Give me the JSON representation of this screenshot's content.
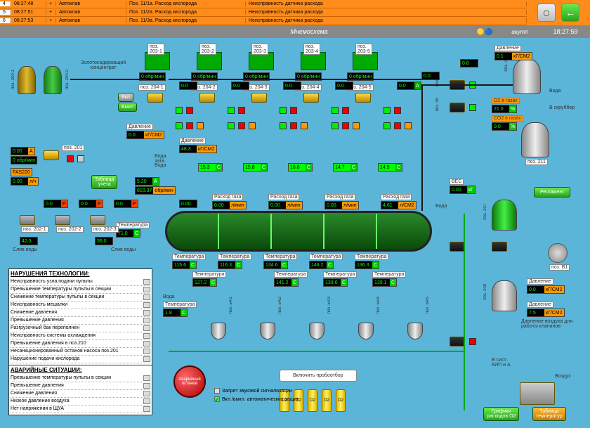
{
  "alarms": {
    "rows": [
      {
        "id": "4",
        "time": "08:27:48",
        "plus": "+",
        "src": "Автоклав",
        "pos": "Поз. 11/1а. Расход кислорода",
        "desc": "Неисправность датчика расхода"
      },
      {
        "id": "5",
        "time": "08:27:51",
        "plus": "+",
        "src": "Автоклав",
        "pos": "Поз. 11/2а. Расход кислорода",
        "desc": "Неисправность датчика расхода"
      },
      {
        "id": "6",
        "time": "08:27:53",
        "plus": "+",
        "src": "Автоклав",
        "pos": "Поз. 11/3а. Расход кислорода",
        "desc": "Неисправность датчика расхода"
      }
    ]
  },
  "title": {
    "center": "Мнемосхема",
    "user": "акутп",
    "time": "18:27:59"
  },
  "labels": {
    "concentrate": "Золотосодержащий\nконцентрат",
    "pos201": "поз. 201",
    "table_link": "Таблица\nучета",
    "vkl": "Вкл",
    "vykl": "Выкл",
    "pressure": "Давление",
    "temperature": "Температура",
    "water": "Вода",
    "water_inlet": "Вода\nзатв.",
    "water_drain": "Слив воды",
    "gas_flow": "Расход газа",
    "pos203_1": "поз.\n203-1",
    "pos203_2": "поз.\n203-2",
    "pos203_3": "поз.\n203-3",
    "pos203_4": "поз.\n203-4",
    "pos203_5": "поз.\n203-5",
    "pos204_1": "поз. 204-1",
    "pos204_2": "поз. 204-2",
    "pos204_3": "поз. 204-3",
    "pos204_4": "поз. 204-4",
    "pos204_5": "поз. 204-5",
    "pos202_1": "поз. 202-1",
    "pos202_2": "поз. 202-2",
    "pos202_3": "поз. 202-3",
    "reglament": "Регламент",
    "scrubber": "В скруббер",
    "pos210": "поз. 210",
    "pos211": "поз. 211",
    "pos207": "поз. 207",
    "pos208": "поз. 208",
    "pos209": "поз. 209",
    "posB1": "поз. В1",
    "weight": "ВЕС",
    "air_note": "Давление воздуха для\nработы клапанов",
    "to_kip": "В сист.\nКИП и А",
    "air": "Воздух",
    "co2": "СО2 в газах",
    "o2_gas": "О2 в газах",
    "sampling": "Включить пробоотбор",
    "stop": "Аварийный\nостанов",
    "mute": "Запрет звуковой сигнализации",
    "auto": "Вкл./выкл. автоматических защит",
    "chart_link": "Графики\nрасходов О2",
    "temp_table": "Таблица\nтемператур"
  },
  "values": {
    "obr_min": "0  обр/мин",
    "p_00": "0.0",
    "pct": "%",
    "d_00": "0.0",
    "kgcm2": "кГ/СМ2",
    "d_483": "48.3",
    "d_153": "15.3",
    "d_158": "15.8",
    "d_168": "16.8",
    "d_147": "14.7",
    "d_149": "14.9",
    "a_520": "5.20",
    "a_unit": "A",
    "obr_810": "810.37",
    "obr_unit": "обр/мин",
    "rg_000": "0.00",
    "rg_lmin": "л/мин",
    "rg_461": "4.61",
    "rg_lcm2": "л/СМ2",
    "t_1156": "115.6",
    "t_1163": "116.3",
    "t_1346": "134.6",
    "t_1482": "148.2",
    "t_1363": "136.3",
    "t_1272": "127.2",
    "t_1412": "141.2",
    "t_1396": "139.6",
    "t_1391": "139.1",
    "t_710": "71.0",
    "t_423": "42.3",
    "t_360": "36.0",
    "t_18": "1.8",
    "o2_210": "21.0",
    "d_01": "0.1",
    "w_000": "0.00",
    "kg": "кГ",
    "d_75": "7.5",
    "p_000": "0.0",
    "p_unit": "Р",
    "lch": "л/ч",
    "fas": "FAS220"
  },
  "violations": {
    "title": "НАРУШЕНИЯ ТЕХНОЛОГИИ:",
    "items": [
      "Неисправность узла подачи пульпы",
      "Превышение температуры пульпы в секции",
      "Снижение температуры пульпы в секции",
      "Неисправность мешалки",
      "Снижение давления",
      "Превышение давления",
      "Разгрузочный бак переполнен",
      "Неисправность системы охлаждения",
      "Превышение давления в поз.210",
      "Несанкционированный останов насоса поз.201",
      "Нарушение подачи кислорода"
    ]
  },
  "emergencies": {
    "title": "АВАРИЙНЫЕ СИТУАЦИИ:",
    "items": [
      "Превышение температуры пульпы в секции",
      "Превышение давления",
      "Снижение давления",
      "Низкое давление воздуха",
      "Нет напряжения в ЩУА"
    ]
  },
  "o2_label": "О2",
  "vtxt": {
    "pos200_1": "поз. 200-1",
    "pos200_2": "поз. 200-2",
    "pos86": "поз. 86",
    "pos89": "поз. 89",
    "pos87": "поз. 87",
    "pos37": "поз. 37",
    "pos50": "поз. 50",
    "pos54_1": "поз. 54/1",
    "pos54_2": "поз. 54/2",
    "pos54_3": "поз. 54/3",
    "pos54_4": "поз. 54/4",
    "pos54_5": "поз. 54/5",
    "pos69_1": "поз. 69/1",
    "pos69_2": "поз. 69/2",
    "pos99_1": "поз. 99/1",
    "pos96_1": "поз. 96/1",
    "pos210v": "поз. 210"
  }
}
